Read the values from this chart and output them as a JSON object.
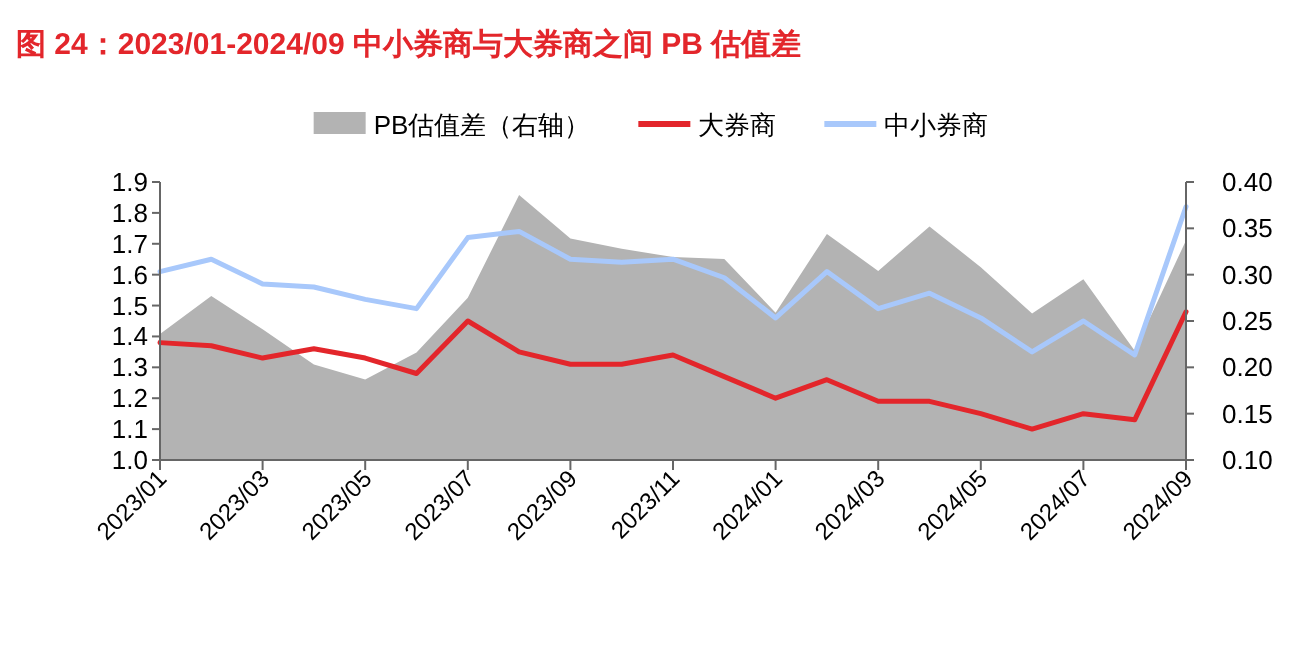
{
  "chart_data": {
    "type": "line",
    "title": "图 24：2023/01-2024/09 中小券商与大券商之间 PB 估值差",
    "categories": [
      "2023/01",
      null,
      "2023/03",
      null,
      "2023/05",
      null,
      "2023/07",
      null,
      "2023/09",
      null,
      "2023/11",
      null,
      "2024/01",
      null,
      "2024/03",
      null,
      "2024/05",
      null,
      "2024/07",
      null,
      "2024/09"
    ],
    "series": [
      {
        "name": "PB估值差（右轴）",
        "type": "area",
        "axis": "y2",
        "color": "#b3b3b3",
        "values": [
          0.236,
          0.277,
          0.241,
          0.203,
          0.187,
          0.216,
          0.275,
          0.386,
          0.339,
          0.328,
          0.319,
          0.317,
          0.259,
          0.344,
          0.304,
          0.352,
          0.308,
          0.258,
          0.295,
          0.218,
          0.337
        ]
      },
      {
        "name": "大券商",
        "type": "line",
        "color": "#e3262b",
        "values": [
          1.38,
          1.37,
          1.33,
          1.36,
          1.33,
          1.28,
          1.45,
          1.35,
          1.31,
          1.31,
          1.34,
          1.27,
          1.2,
          1.26,
          1.19,
          1.19,
          1.15,
          1.1,
          1.15,
          1.13,
          1.48
        ]
      },
      {
        "name": "中小券商",
        "type": "line",
        "color": "#a8c8fb",
        "values": [
          1.61,
          1.65,
          1.57,
          1.56,
          1.52,
          1.49,
          1.72,
          1.74,
          1.65,
          1.64,
          1.65,
          1.59,
          1.46,
          1.61,
          1.49,
          1.54,
          1.46,
          1.35,
          1.45,
          1.34,
          1.82
        ]
      }
    ],
    "ylim": [
      1.0,
      1.9
    ],
    "yticks": [
      {
        "value": 1.0,
        "label": "1.0"
      },
      1.1,
      1.2,
      1.3,
      1.4,
      1.5,
      1.6,
      1.7,
      1.8,
      1.9
    ],
    "y2lim": [
      0.1,
      0.4
    ],
    "y2ticks": [
      {
        "value": 0.1,
        "label": "0.10"
      },
      {
        "value": 0.15,
        "label": "0.15"
      },
      {
        "value": 0.2,
        "label": "0.20"
      },
      {
        "value": 0.25,
        "label": "0.25"
      },
      {
        "value": 0.3,
        "label": "0.30"
      },
      {
        "value": 0.35,
        "label": "0.35"
      },
      {
        "value": 0.4,
        "label": "0.40"
      }
    ],
    "legend": "top",
    "grid": false
  }
}
